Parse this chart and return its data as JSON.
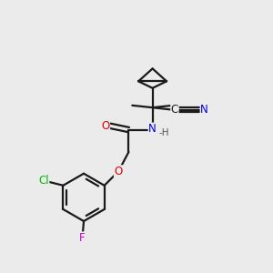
{
  "bg_color": "#ebebeb",
  "bond_color": "#1a1a1a",
  "atom_colors": {
    "O": "#e00000",
    "N": "#0000dd",
    "Cl": "#00bb00",
    "F": "#cc00cc",
    "C": "#1a1a1a",
    "H": "#555555"
  },
  "lw": 1.6
}
